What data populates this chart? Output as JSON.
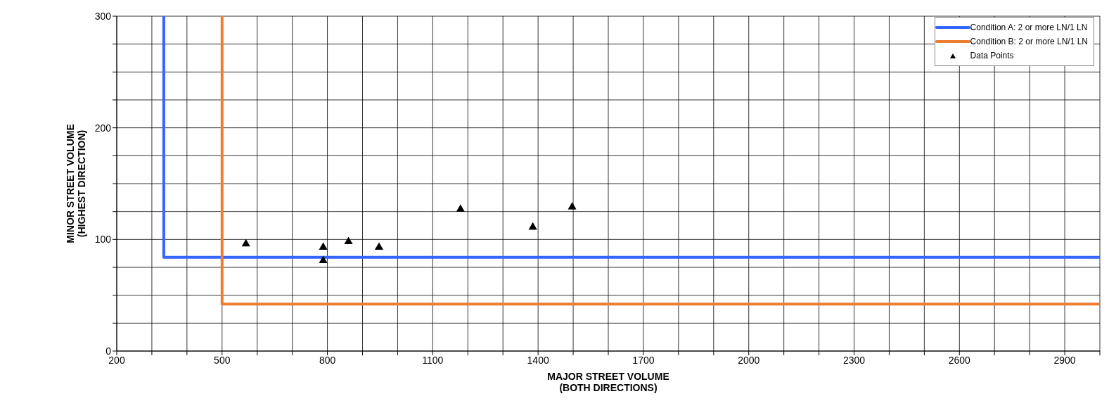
{
  "chart_data": {
    "type": "scatter",
    "xlabel": "MAJOR STREET VOLUME\n(BOTH DIRECTIONS)",
    "ylabel": "MINOR STREET VOLUME\n(HIGHEST DIRECTION)",
    "xlim": [
      200,
      3000
    ],
    "ylim": [
      0,
      300
    ],
    "xticks": [
      200,
      {
        "value": 300,
        "label": null
      },
      {
        "value": 400,
        "label": null
      },
      500,
      {
        "value": 600,
        "label": null
      },
      {
        "value": 700,
        "label": null
      },
      800,
      {
        "value": 900,
        "label": null
      },
      {
        "value": 1000,
        "label": null
      },
      1100,
      {
        "value": 1200,
        "label": null
      },
      {
        "value": 1300,
        "label": null
      },
      1400,
      {
        "value": 1500,
        "label": null
      },
      {
        "value": 1600,
        "label": null
      },
      1700,
      {
        "value": 1800,
        "label": null
      },
      {
        "value": 1900,
        "label": null
      },
      2000,
      {
        "value": 2100,
        "label": null
      },
      {
        "value": 2200,
        "label": null
      },
      2300,
      {
        "value": 2400,
        "label": null
      },
      {
        "value": 2500,
        "label": null
      },
      2600,
      {
        "value": 2700,
        "label": null
      },
      {
        "value": 2800,
        "label": null
      },
      2900,
      {
        "value": 3000,
        "label": null
      }
    ],
    "yticks": [
      0,
      {
        "value": 25,
        "label": null
      },
      {
        "value": 50,
        "label": null
      },
      {
        "value": 75,
        "label": null
      },
      100,
      {
        "value": 125,
        "label": null
      },
      {
        "value": 150,
        "label": null
      },
      {
        "value": 175,
        "label": null
      },
      200,
      {
        "value": 225,
        "label": null
      },
      {
        "value": 250,
        "label": null
      },
      {
        "value": 275,
        "label": null
      },
      300
    ],
    "grid": true,
    "legend": "top right",
    "series": [
      {
        "name": "Condition A: 2 or more LN/1 LN",
        "type": "line",
        "color": "#3366ff",
        "marker": "none",
        "x": [
          334,
          334,
          3000
        ],
        "values": [
          300,
          84,
          84
        ]
      },
      {
        "name": "Condition B: 2 or more LN/1 LN",
        "type": "line",
        "color": "#ed7d31",
        "marker": "none",
        "x": [
          500,
          500,
          3000
        ],
        "values": [
          300,
          42,
          42
        ]
      },
      {
        "name": "Data Points",
        "color": "#000000",
        "marker": "triangle",
        "x": [
          568,
          788,
          788,
          860,
          947,
          1179,
          1385,
          1497
        ],
        "values": [
          96,
          93,
          81,
          98,
          93,
          127,
          111,
          129
        ]
      }
    ]
  }
}
